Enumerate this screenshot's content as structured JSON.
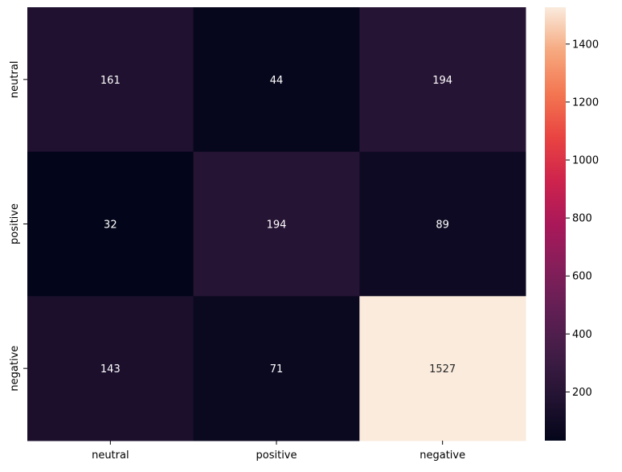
{
  "chart_data": {
    "type": "heatmap",
    "title": "",
    "xlabel": "",
    "ylabel": "",
    "x_categories": [
      "neutral",
      "positive",
      "negative"
    ],
    "y_categories": [
      "neutral",
      "positive",
      "negative"
    ],
    "values": [
      [
        161,
        44,
        194
      ],
      [
        32,
        194,
        89
      ],
      [
        143,
        71,
        1527
      ]
    ],
    "colormap": "rocket",
    "colorbar": {
      "range": [
        32,
        1527
      ],
      "ticks": [
        200,
        400,
        600,
        800,
        1000,
        1200,
        1400
      ]
    },
    "annotation_text_colors": {
      "dark_cell": "#ffffff",
      "light_cell": "#262626"
    }
  }
}
